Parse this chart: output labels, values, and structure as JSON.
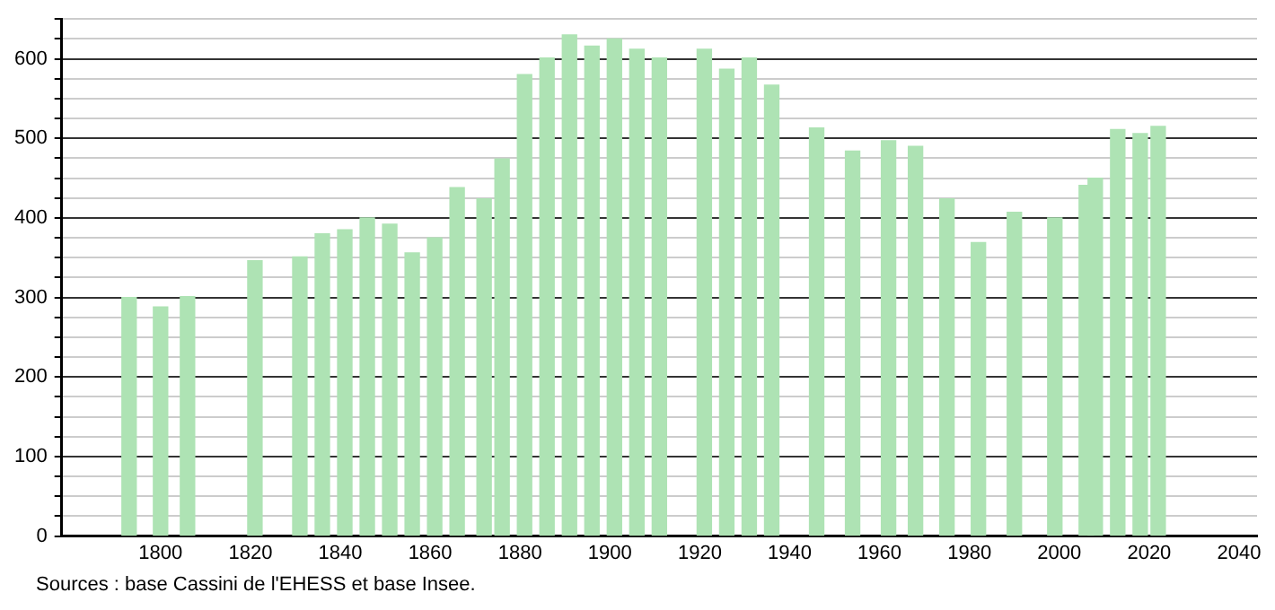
{
  "chart_data": {
    "type": "bar",
    "x": [
      1793,
      1800,
      1806,
      1821,
      1831,
      1836,
      1841,
      1846,
      1851,
      1856,
      1861,
      1866,
      1872,
      1876,
      1881,
      1886,
      1891,
      1896,
      1901,
      1906,
      1911,
      1921,
      1926,
      1931,
      1936,
      1946,
      1954,
      1962,
      1968,
      1975,
      1982,
      1990,
      1999,
      2006,
      2008,
      2013,
      2018,
      2022
    ],
    "values": [
      300,
      288,
      301,
      346,
      351,
      380,
      385,
      400,
      392,
      356,
      375,
      438,
      424,
      474,
      580,
      601,
      630,
      616,
      625,
      612,
      601,
      612,
      587,
      601,
      567,
      513,
      484,
      497,
      490,
      424,
      369,
      407,
      400,
      441,
      450,
      511,
      506,
      515
    ],
    "color": "#aee3b4",
    "xlim": [
      1778,
      2044
    ],
    "xticks": [
      1800,
      1820,
      1840,
      1860,
      1880,
      1900,
      1920,
      1940,
      1960,
      1980,
      2000,
      2020,
      2040
    ],
    "ylim": [
      0,
      650
    ],
    "yticks": [
      0,
      {
        "value": 25,
        "label": null
      },
      {
        "value": 50,
        "label": null
      },
      {
        "value": 75,
        "label": null
      },
      100,
      {
        "value": 125,
        "label": null
      },
      {
        "value": 150,
        "label": null
      },
      {
        "value": 175,
        "label": null
      },
      200,
      {
        "value": 225,
        "label": null
      },
      {
        "value": 250,
        "label": null
      },
      {
        "value": 275,
        "label": null
      },
      300,
      {
        "value": 325,
        "label": null
      },
      {
        "value": 350,
        "label": null
      },
      {
        "value": 375,
        "label": null
      },
      400,
      {
        "value": 425,
        "label": null
      },
      {
        "value": 450,
        "label": null
      },
      {
        "value": 475,
        "label": null
      },
      500,
      {
        "value": 525,
        "label": null
      },
      {
        "value": 550,
        "label": null
      },
      {
        "value": 575,
        "label": null
      },
      600,
      {
        "value": 625,
        "label": null
      },
      {
        "value": 650,
        "label": null
      }
    ],
    "grid": "y",
    "legend": false,
    "annotations": [
      "Sources : base Cassini de l'EHESS et base Insee."
    ]
  }
}
